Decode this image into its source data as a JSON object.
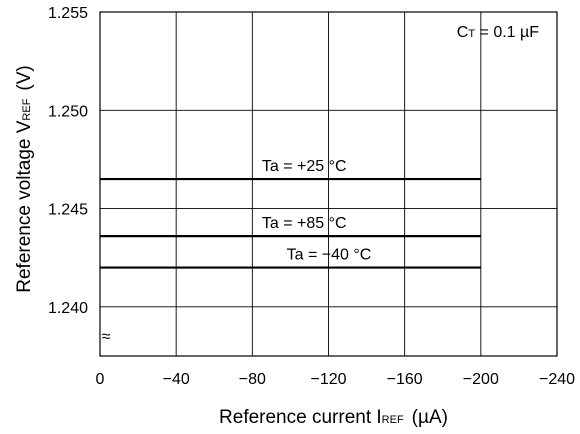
{
  "chart_data": {
    "type": "line",
    "x_ticks": [
      "0",
      "−40",
      "−80",
      "−120",
      "−160",
      "−200",
      "−240"
    ],
    "x_tick_values": [
      0,
      -40,
      -80,
      -120,
      -160,
      -200,
      -240
    ],
    "y_ticks": [
      "1.255",
      "1.250",
      "1.245",
      "1.240"
    ],
    "y_tick_values": [
      1.255,
      1.25,
      1.245,
      1.24
    ],
    "xlim": [
      0,
      -240
    ],
    "ylim": [
      1.2375,
      1.255
    ],
    "axis_break_symbol": "≈",
    "grid": true,
    "xlabel": {
      "main": "Reference current I",
      "sub": "REF",
      "unit": "(µA)"
    },
    "ylabel": {
      "main": "Reference voltage V",
      "sub": "REF",
      "unit": "(V)"
    },
    "annotation": {
      "prefix": "C",
      "sub": "T",
      "rest": " = 0.1 µF"
    },
    "series": [
      {
        "name": "Ta = +25 °C",
        "x": [
          0,
          -200
        ],
        "y": [
          1.2465,
          1.2465
        ]
      },
      {
        "name": "Ta = +85 °C",
        "x": [
          0,
          -200
        ],
        "y": [
          1.2436,
          1.2436
        ]
      },
      {
        "name": "Ta = −40 °C",
        "x": [
          0,
          -200
        ],
        "y": [
          1.242,
          1.242
        ]
      }
    ],
    "line_color": "#000000"
  }
}
